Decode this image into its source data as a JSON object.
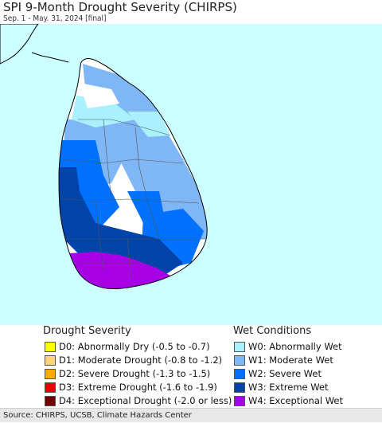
{
  "header": {
    "title": "SPI 9-Month Drought Severity (CHIRPS)",
    "subtitle": "Sep. 1 - May. 31, 2024 [final]"
  },
  "map": {
    "ocean_color": "#ccffff",
    "land_outline_color": "#000000"
  },
  "legend": {
    "drought_title": "Drought Severity",
    "wet_title": "Wet Conditions",
    "drought_items": [
      {
        "label": "D0: Abnormally Dry (-0.5 to -0.7)",
        "color": "#ffff00"
      },
      {
        "label": "D1: Moderate Drought (-0.8 to -1.2)",
        "color": "#fcd37f"
      },
      {
        "label": "D2: Severe Drought (-1.3 to -1.5)",
        "color": "#ffaa00"
      },
      {
        "label": "D3: Extreme Drought (-1.6 to -1.9)",
        "color": "#e60000"
      },
      {
        "label": "D4: Exceptional Drought (-2.0 or less)",
        "color": "#730000"
      }
    ],
    "wet_items": [
      {
        "label": "W0: Abnormally Wet",
        "color": "#aaf0ff"
      },
      {
        "label": "W1: Moderate Wet",
        "color": "#7fb6f5"
      },
      {
        "label": "W2: Severe Wet",
        "color": "#0070ff"
      },
      {
        "label": "W3: Extreme Wet",
        "color": "#0044aa"
      },
      {
        "label": "W4: Exceptional Wet",
        "color": "#a800e6"
      }
    ]
  },
  "footer": {
    "source": "Source: CHIRPS, UCSB, Climate Hazards Center"
  }
}
